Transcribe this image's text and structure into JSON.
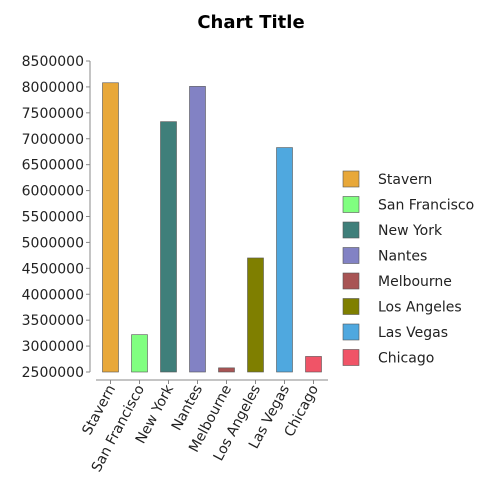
{
  "chart_data": {
    "type": "bar",
    "title": "Chart Title",
    "xlabel": "",
    "ylabel": "",
    "ylim": [
      2500000,
      8500000
    ],
    "yticks": [
      "8500000",
      "8000000",
      "7500000",
      "7000000",
      "6500000",
      "6000000",
      "5500000",
      "5000000",
      "4500000",
      "4000000",
      "3500000",
      "3000000",
      "2500000"
    ],
    "categories": [
      "Stavern",
      "San Francisco",
      "New York",
      "Nantes",
      "Melbourne",
      "Los Angeles",
      "Las Vegas",
      "Chicago"
    ],
    "values": [
      8080000,
      3220000,
      7330000,
      8010000,
      2580000,
      4700000,
      6830000,
      2800000
    ],
    "colors": [
      "#E8A83A",
      "#80FF80",
      "#3F7F7A",
      "#8282C4",
      "#A85454",
      "#7F7F00",
      "#4FA8DF",
      "#F05467"
    ],
    "grid": false,
    "legend_position": "right"
  }
}
